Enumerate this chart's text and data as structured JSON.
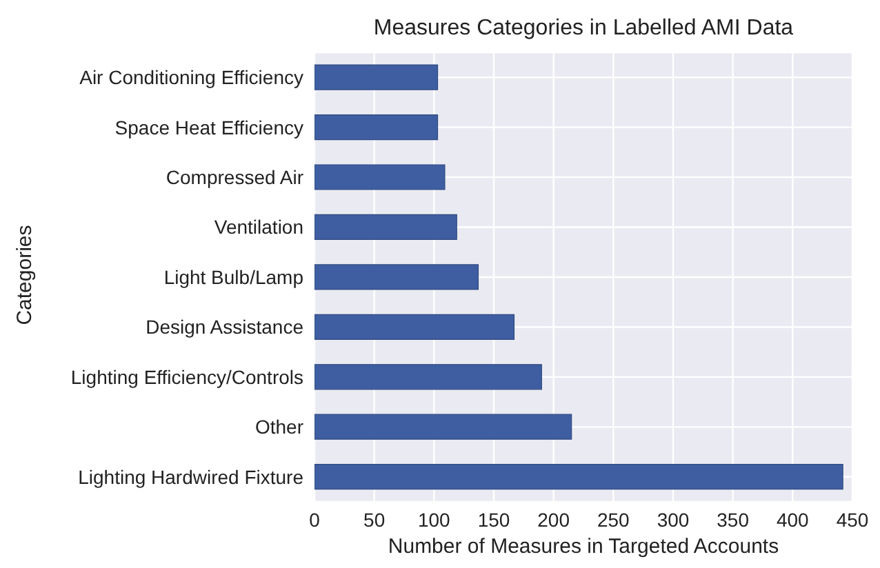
{
  "chart_data": {
    "type": "bar",
    "orientation": "horizontal",
    "title": "Measures Categories in Labelled AMI Data",
    "xlabel": "Number of Measures in Targeted Accounts",
    "ylabel": "Categories",
    "categories": [
      "Air Conditioning Efficiency",
      "Space Heat Efficiency",
      "Compressed Air",
      "Ventilation",
      "Light Bulb/Lamp",
      "Design Assistance",
      "Lighting Efficiency/Controls",
      "Other",
      "Lighting Hardwired Fixture"
    ],
    "values": [
      103,
      103,
      109,
      119,
      137,
      167,
      190,
      215,
      442
    ],
    "color": "#3e5ea1",
    "xlim": [
      0,
      450
    ],
    "xticks": [
      0,
      50,
      100,
      150,
      200,
      250,
      300,
      350,
      400,
      450
    ],
    "grid": true,
    "legend": false
  }
}
